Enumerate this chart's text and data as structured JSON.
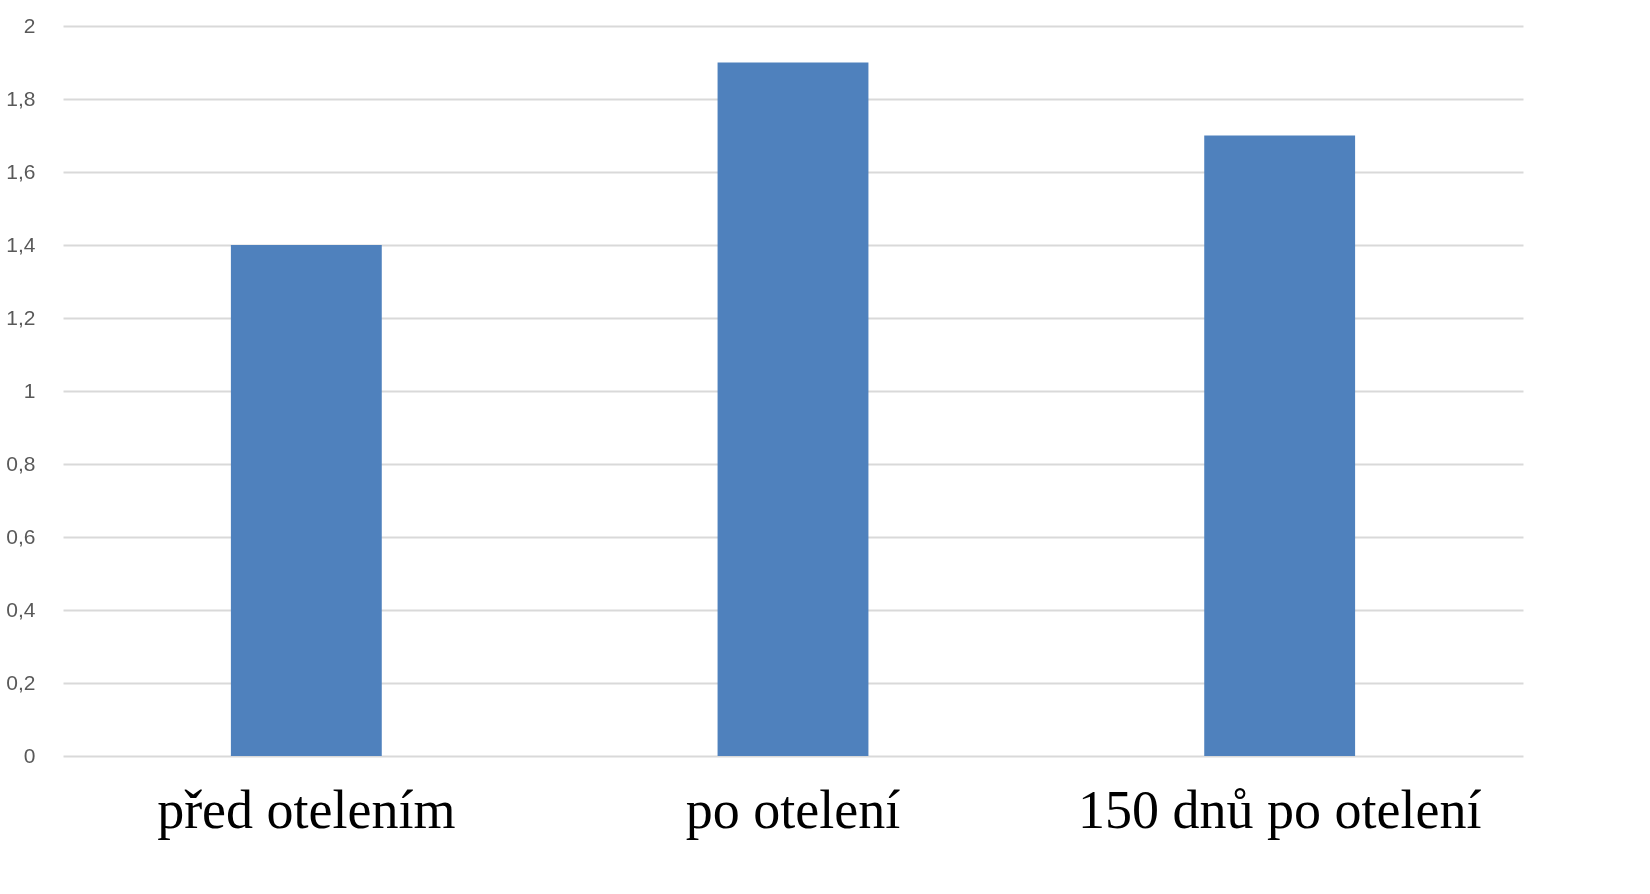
{
  "chart_data": {
    "type": "bar",
    "categories": [
      "před otelením",
      "po otelení",
      "150 dnů po otelení"
    ],
    "values": [
      1.4,
      1.9,
      1.7
    ],
    "color": "#4f81bd",
    "ylim": [
      0,
      2
    ],
    "yticks": [
      0,
      {
        "value": 0.2,
        "label": "0,2"
      },
      {
        "value": 0.4,
        "label": "0,4"
      },
      {
        "value": 0.6,
        "label": "0,6"
      },
      {
        "value": 0.8,
        "label": "0,8"
      },
      1,
      {
        "value": 1.2,
        "label": "1,2"
      },
      {
        "value": 1.4,
        "label": "1,4"
      },
      {
        "value": 1.6,
        "label": "1,6"
      },
      {
        "value": 1.8,
        "label": "1,8"
      },
      2
    ],
    "grid": "y"
  }
}
